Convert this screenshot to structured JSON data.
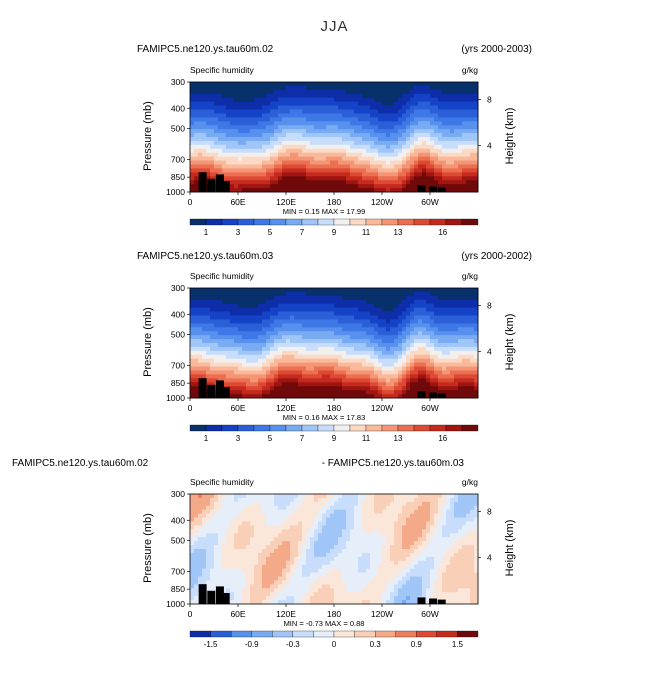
{
  "title": "JJA",
  "chart_data": [
    {
      "type": "heatmap",
      "left_title": "FAMIPC5.ne120.ys.tau60m.02",
      "right_title": "(yrs 2000-2003)",
      "subtitle": "Specific humidity",
      "units": "g/kg",
      "ylabel": "Pressure  (mb)",
      "ylabel_right": "Height  (km)",
      "yticks": [
        "300",
        "400",
        "500",
        "700",
        "850",
        "1000"
      ],
      "yticks_right": [
        "8",
        "4"
      ],
      "xticks": [
        "0",
        "60E",
        "120E",
        "180",
        "120W",
        "60W"
      ],
      "stats": "MIN =    0.15   MAX =   17.99",
      "colorbar_labels": [
        "1",
        "3",
        "5",
        "7",
        "9",
        "11",
        "13",
        "16"
      ],
      "min": 0.15,
      "max": 17.99
    },
    {
      "type": "heatmap",
      "left_title": "FAMIPC5.ne120.ys.tau60m.03",
      "right_title": "(yrs 2000-2002)",
      "subtitle": "Specific humidity",
      "units": "g/kg",
      "ylabel": "Pressure  (mb)",
      "ylabel_right": "Height  (km)",
      "yticks": [
        "300",
        "400",
        "500",
        "700",
        "850",
        "1000"
      ],
      "yticks_right": [
        "8",
        "4"
      ],
      "xticks": [
        "0",
        "60E",
        "120E",
        "180",
        "120W",
        "60W"
      ],
      "stats": "MIN =    0.16   MAX =   17.83",
      "colorbar_labels": [
        "1",
        "3",
        "5",
        "7",
        "9",
        "11",
        "13",
        "16"
      ],
      "min": 0.16,
      "max": 17.83
    },
    {
      "type": "heatmap",
      "left_title": "FAMIPC5.ne120.ys.tau60m.02",
      "right_title": "- FAMIPC5.ne120.ys.tau60m.03",
      "subtitle": "Specific humidity",
      "units": "g/kg",
      "ylabel": "Pressure  (mb)",
      "ylabel_right": "Height  (km)",
      "yticks": [
        "300",
        "400",
        "500",
        "700",
        "850",
        "1000"
      ],
      "yticks_right": [
        "8",
        "4"
      ],
      "xticks": [
        "0",
        "60E",
        "120E",
        "180",
        "120W",
        "60W"
      ],
      "stats": "MIN =   -0.73   MAX =    0.88",
      "colorbar_labels": [
        "-1.5",
        "-0.9",
        "-0.3",
        "0",
        "0.3",
        "0.9",
        "1.5"
      ],
      "min": -0.73,
      "max": 0.88
    }
  ],
  "colors": {
    "scale_full": [
      "#08306b",
      "#0d2ea8",
      "#1543c7",
      "#2a5fd8",
      "#3e78e6",
      "#5890ee",
      "#79abf3",
      "#a0c6f8",
      "#c8ddfb",
      "#f2f0ef",
      "#fcd9c4",
      "#f9b99a",
      "#f49575",
      "#ec6f52",
      "#dd4a33",
      "#c52a1f",
      "#a01512",
      "#700a0a"
    ],
    "scale_diff": [
      "#0d2ea8",
      "#2a5fd8",
      "#5890ee",
      "#79abf3",
      "#a0c6f8",
      "#c8ddfb",
      "#e6eefa",
      "#fbe6da",
      "#f9cfb8",
      "#f4a988",
      "#ec7f5d",
      "#dd4a33",
      "#c52a1f",
      "#700a0a"
    ],
    "terrain": "#000000"
  }
}
